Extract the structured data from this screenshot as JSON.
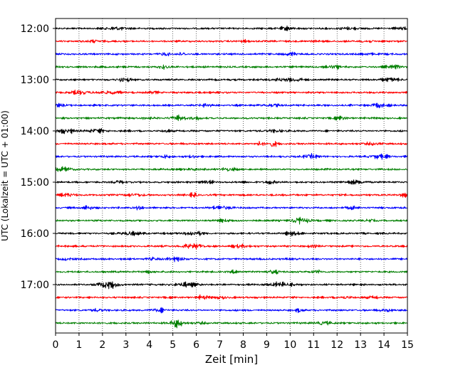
{
  "chart_data": {
    "type": "line",
    "title": "",
    "xlabel": "Zeit  [min]",
    "ylabel": "UTC (Lokalzeit = UTC + 01:00)",
    "xlim": [
      0,
      15
    ],
    "x_ticks": [
      "0",
      "1",
      "2",
      "3",
      "4",
      "5",
      "6",
      "7",
      "8",
      "9",
      "10",
      "11",
      "12",
      "13",
      "14",
      "15"
    ],
    "y_ticks": [
      "12:00",
      "13:00",
      "14:00",
      "15:00",
      "16:00",
      "17:00"
    ],
    "grid_vertical": true,
    "grid_style": "dotted",
    "trace_interval_minutes": 15,
    "start_time": "12:00",
    "trace_count": 24,
    "color_cycle": [
      "#000000",
      "#ff0000",
      "#0000ff",
      "#007f00"
    ],
    "series": [
      {
        "start": "12:00",
        "color": "#000000"
      },
      {
        "start": "12:15",
        "color": "#ff0000"
      },
      {
        "start": "12:30",
        "color": "#0000ff"
      },
      {
        "start": "12:45",
        "color": "#007f00"
      },
      {
        "start": "13:00",
        "color": "#000000"
      },
      {
        "start": "13:15",
        "color": "#ff0000"
      },
      {
        "start": "13:30",
        "color": "#0000ff"
      },
      {
        "start": "13:45",
        "color": "#007f00"
      },
      {
        "start": "14:00",
        "color": "#000000"
      },
      {
        "start": "14:15",
        "color": "#ff0000"
      },
      {
        "start": "14:30",
        "color": "#0000ff"
      },
      {
        "start": "14:45",
        "color": "#007f00"
      },
      {
        "start": "15:00",
        "color": "#000000"
      },
      {
        "start": "15:15",
        "color": "#ff0000"
      },
      {
        "start": "15:30",
        "color": "#0000ff"
      },
      {
        "start": "15:45",
        "color": "#007f00"
      },
      {
        "start": "16:00",
        "color": "#000000"
      },
      {
        "start": "16:15",
        "color": "#ff0000"
      },
      {
        "start": "16:30",
        "color": "#0000ff"
      },
      {
        "start": "16:45",
        "color": "#007f00"
      },
      {
        "start": "17:00",
        "color": "#000000"
      },
      {
        "start": "17:15",
        "color": "#ff0000"
      },
      {
        "start": "17:30",
        "color": "#0000ff"
      },
      {
        "start": "17:45",
        "color": "#007f00"
      }
    ]
  }
}
